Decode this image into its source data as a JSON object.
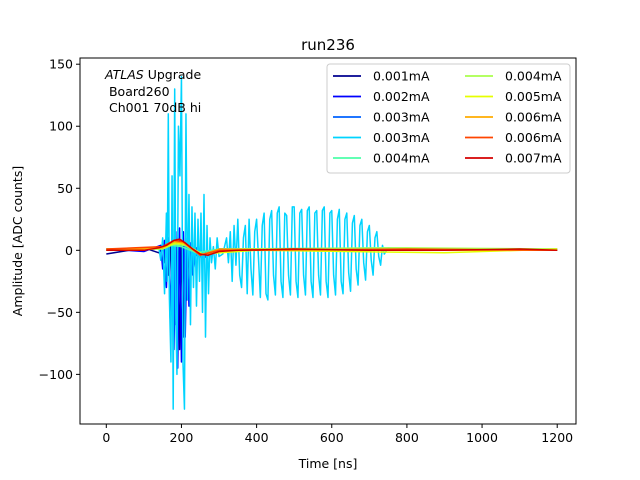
{
  "chart_data": {
    "type": "line",
    "title": "run236",
    "xlabel": "Time [ns]",
    "ylabel": "Amplitude [ADC counts]",
    "xlim": [
      -70,
      1250
    ],
    "ylim": [
      -140,
      155
    ],
    "xticks": [
      0,
      200,
      400,
      600,
      800,
      1000,
      1200
    ],
    "yticks": [
      -100,
      -50,
      0,
      50,
      100,
      150
    ],
    "xtick_labels": [
      "0",
      "200",
      "400",
      "600",
      "800",
      "1000",
      "1200"
    ],
    "ytick_labels": [
      "−100",
      "−50",
      "0",
      "50",
      "100",
      "150"
    ],
    "grid": false,
    "legend_position": "top-right",
    "legend_columns": 2,
    "annotation": {
      "line1_italic": "ATLAS",
      "line1_rest": " Upgrade",
      "line2": " Board260",
      "line3": " Ch001 70dB hi"
    },
    "series": [
      {
        "name": "0.001mA",
        "color": "#00008f",
        "points": [
          [
            0,
            -3
          ],
          [
            100,
            2
          ],
          [
            140,
            -2
          ],
          [
            150,
            3
          ],
          [
            155,
            -10
          ],
          [
            160,
            4
          ],
          [
            165,
            -20
          ],
          [
            170,
            6
          ],
          [
            175,
            -40
          ],
          [
            180,
            8
          ],
          [
            185,
            -60
          ],
          [
            190,
            10
          ],
          [
            195,
            -80
          ],
          [
            200,
            8
          ],
          [
            205,
            -70
          ],
          [
            210,
            6
          ],
          [
            215,
            -40
          ],
          [
            220,
            4
          ],
          [
            225,
            -15
          ],
          [
            230,
            2
          ],
          [
            240,
            -4
          ],
          [
            260,
            -6
          ],
          [
            300,
            0
          ],
          [
            500,
            1
          ],
          [
            800,
            0
          ],
          [
            1000,
            1
          ],
          [
            1200,
            0
          ]
        ]
      },
      {
        "name": "0.002mA",
        "color": "#0000ff",
        "points": [
          [
            0,
            1
          ],
          [
            100,
            -1
          ],
          [
            145,
            4
          ],
          [
            150,
            -15
          ],
          [
            155,
            8
          ],
          [
            160,
            -30
          ],
          [
            165,
            10
          ],
          [
            170,
            -55
          ],
          [
            175,
            12
          ],
          [
            180,
            -80
          ],
          [
            185,
            15
          ],
          [
            190,
            -95
          ],
          [
            195,
            18
          ],
          [
            200,
            -90
          ],
          [
            205,
            15
          ],
          [
            210,
            -70
          ],
          [
            215,
            10
          ],
          [
            220,
            -45
          ],
          [
            225,
            6
          ],
          [
            230,
            -20
          ],
          [
            240,
            2
          ],
          [
            260,
            -5
          ],
          [
            300,
            1
          ],
          [
            600,
            0
          ],
          [
            900,
            1
          ],
          [
            1200,
            0
          ]
        ]
      },
      {
        "name": "0.003mA",
        "color": "#0063ff",
        "points": [
          [
            0,
            0
          ],
          [
            150,
            2
          ],
          [
            170,
            5
          ],
          [
            200,
            3
          ],
          [
            240,
            -3
          ],
          [
            300,
            1
          ],
          [
            700,
            0
          ],
          [
            1200,
            1
          ]
        ]
      },
      {
        "name": "0.003mA",
        "color": "#00d4ff",
        "points": [
          [
            0,
            0
          ],
          [
            140,
            2
          ],
          [
            145,
            -8
          ],
          [
            150,
            10
          ],
          [
            155,
            -35
          ],
          [
            160,
            30
          ],
          [
            162,
            -25
          ],
          [
            165,
            110
          ],
          [
            168,
            -40
          ],
          [
            172,
            -90
          ],
          [
            175,
            60
          ],
          [
            178,
            -128
          ],
          [
            182,
            130
          ],
          [
            185,
            -55
          ],
          [
            188,
            -100
          ],
          [
            192,
            100
          ],
          [
            196,
            60
          ],
          [
            200,
            140
          ],
          [
            204,
            -90
          ],
          [
            208,
            -128
          ],
          [
            212,
            110
          ],
          [
            216,
            -40
          ],
          [
            220,
            45
          ],
          [
            224,
            -60
          ],
          [
            228,
            35
          ],
          [
            232,
            -30
          ],
          [
            236,
            30
          ],
          [
            240,
            -45
          ],
          [
            244,
            25
          ],
          [
            248,
            -25
          ],
          [
            252,
            30
          ],
          [
            256,
            -50
          ],
          [
            260,
            45
          ],
          [
            264,
            -70
          ],
          [
            268,
            20
          ],
          [
            272,
            -35
          ],
          [
            276,
            10
          ],
          [
            280,
            -10
          ],
          [
            285,
            3
          ],
          [
            290,
            -15
          ],
          [
            295,
            10
          ],
          [
            300,
            -5
          ],
          [
            310,
            -3
          ],
          [
            320,
            10
          ],
          [
            325,
            -10
          ],
          [
            330,
            15
          ],
          [
            335,
            -25
          ],
          [
            340,
            20
          ],
          [
            345,
            -12
          ],
          [
            350,
            25
          ],
          [
            355,
            -20
          ],
          [
            360,
            -30
          ],
          [
            365,
            10
          ],
          [
            370,
            20
          ],
          [
            375,
            -35
          ],
          [
            380,
            25
          ],
          [
            385,
            -15
          ],
          [
            390,
            -36
          ],
          [
            395,
            15
          ],
          [
            400,
            25
          ],
          [
            410,
            -38
          ],
          [
            415,
            20
          ],
          [
            420,
            30
          ],
          [
            425,
            -35
          ],
          [
            430,
            -40
          ],
          [
            435,
            25
          ],
          [
            440,
            32
          ],
          [
            445,
            -20
          ],
          [
            450,
            -36
          ],
          [
            455,
            30
          ],
          [
            460,
            35
          ],
          [
            465,
            -25
          ],
          [
            470,
            -38
          ],
          [
            475,
            30
          ],
          [
            480,
            28
          ],
          [
            485,
            -20
          ],
          [
            490,
            -36
          ],
          [
            495,
            35
          ],
          [
            500,
            35
          ],
          [
            505,
            -25
          ],
          [
            510,
            -38
          ],
          [
            515,
            30
          ],
          [
            520,
            33
          ],
          [
            525,
            -20
          ],
          [
            530,
            -36
          ],
          [
            535,
            32
          ],
          [
            540,
            35
          ],
          [
            545,
            -25
          ],
          [
            550,
            -38
          ],
          [
            555,
            30
          ],
          [
            560,
            32
          ],
          [
            565,
            -20
          ],
          [
            570,
            -36
          ],
          [
            575,
            32
          ],
          [
            580,
            35
          ],
          [
            585,
            -25
          ],
          [
            590,
            -38
          ],
          [
            595,
            30
          ],
          [
            600,
            32
          ],
          [
            605,
            -20
          ],
          [
            610,
            -36
          ],
          [
            615,
            25
          ],
          [
            620,
            33
          ],
          [
            625,
            -25
          ],
          [
            630,
            -35
          ],
          [
            635,
            25
          ],
          [
            640,
            30
          ],
          [
            645,
            -18
          ],
          [
            650,
            -33
          ],
          [
            655,
            22
          ],
          [
            660,
            28
          ],
          [
            665,
            -15
          ],
          [
            670,
            -28
          ],
          [
            675,
            20
          ],
          [
            680,
            25
          ],
          [
            685,
            -10
          ],
          [
            690,
            -24
          ],
          [
            695,
            15
          ],
          [
            700,
            20
          ],
          [
            705,
            -8
          ],
          [
            710,
            -20
          ],
          [
            715,
            10
          ],
          [
            720,
            15
          ],
          [
            725,
            -5
          ],
          [
            730,
            -12
          ],
          [
            735,
            4
          ],
          [
            740,
            -3
          ],
          [
            750,
            2
          ],
          [
            800,
            0
          ],
          [
            900,
            1
          ],
          [
            1000,
            0
          ],
          [
            1100,
            1
          ],
          [
            1200,
            0
          ]
        ]
      },
      {
        "name": "0.004mA",
        "color": "#4dffa9",
        "points": [
          [
            0,
            1
          ],
          [
            150,
            2
          ],
          [
            175,
            4
          ],
          [
            200,
            3
          ],
          [
            240,
            -2
          ],
          [
            300,
            1
          ],
          [
            750,
            2
          ],
          [
            1200,
            0
          ]
        ]
      },
      {
        "name": "0.004mA",
        "color": "#a9ff4d",
        "points": [
          [
            0,
            0
          ],
          [
            150,
            1
          ],
          [
            180,
            5
          ],
          [
            210,
            4
          ],
          [
            250,
            -3
          ],
          [
            350,
            1
          ],
          [
            800,
            2
          ],
          [
            1200,
            1
          ]
        ]
      },
      {
        "name": "0.005mA",
        "color": "#e6ff00",
        "points": [
          [
            0,
            1
          ],
          [
            150,
            2
          ],
          [
            185,
            6
          ],
          [
            210,
            5
          ],
          [
            255,
            -3
          ],
          [
            400,
            0
          ],
          [
            900,
            -2
          ],
          [
            1200,
            1
          ]
        ]
      },
      {
        "name": "0.006mA",
        "color": "#ffab00",
        "points": [
          [
            0,
            0
          ],
          [
            150,
            2
          ],
          [
            180,
            7
          ],
          [
            205,
            6
          ],
          [
            250,
            -4
          ],
          [
            300,
            1
          ],
          [
            700,
            0
          ],
          [
            1200,
            0
          ]
        ]
      },
      {
        "name": "0.006mA",
        "color": "#ff4500",
        "points": [
          [
            0,
            1
          ],
          [
            150,
            3
          ],
          [
            180,
            8
          ],
          [
            205,
            7
          ],
          [
            250,
            -4
          ],
          [
            300,
            0
          ],
          [
            800,
            1
          ],
          [
            1200,
            0
          ]
        ]
      },
      {
        "name": "0.007mA",
        "color": "#d40000",
        "points": [
          [
            0,
            0
          ],
          [
            100,
            0
          ],
          [
            140,
            2
          ],
          [
            160,
            4
          ],
          [
            180,
            8
          ],
          [
            195,
            9
          ],
          [
            210,
            6
          ],
          [
            230,
            1
          ],
          [
            250,
            -3
          ],
          [
            270,
            -4
          ],
          [
            300,
            -1
          ],
          [
            350,
            0
          ],
          [
            500,
            1
          ],
          [
            700,
            0
          ],
          [
            900,
            0
          ],
          [
            1100,
            1
          ],
          [
            1200,
            0
          ]
        ]
      }
    ]
  }
}
